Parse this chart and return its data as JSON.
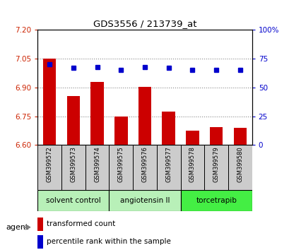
{
  "title": "GDS3556 / 213739_at",
  "samples": [
    "GSM399572",
    "GSM399573",
    "GSM399574",
    "GSM399575",
    "GSM399576",
    "GSM399577",
    "GSM399578",
    "GSM399579",
    "GSM399580"
  ],
  "bar_values": [
    7.05,
    6.855,
    6.93,
    6.75,
    6.905,
    6.775,
    6.675,
    6.695,
    6.69
  ],
  "dot_values": [
    70,
    67,
    68,
    65,
    68,
    67,
    65,
    65,
    65
  ],
  "ylim_left": [
    6.6,
    7.2
  ],
  "ylim_right": [
    0,
    100
  ],
  "yticks_left": [
    6.6,
    6.75,
    6.9,
    7.05,
    7.2
  ],
  "yticks_right": [
    0,
    25,
    50,
    75,
    100
  ],
  "bar_color": "#cc0000",
  "dot_color": "#0000cc",
  "groups": [
    {
      "label": "solvent control",
      "start": 0,
      "end": 3,
      "color": "#b8f0b8"
    },
    {
      "label": "angiotensin II",
      "start": 3,
      "end": 6,
      "color": "#b8f0b8"
    },
    {
      "label": "torcetrapib",
      "start": 6,
      "end": 9,
      "color": "#44ee44"
    }
  ],
  "legend_bar_label": "transformed count",
  "legend_dot_label": "percentile rank within the sample",
  "agent_label": "agent",
  "grid_color": "#888888",
  "tick_color_left": "#cc2200",
  "tick_color_right": "#0000cc",
  "background_color": "#ffffff",
  "plot_bg_color": "#ffffff",
  "sample_bg_color": "#cccccc"
}
